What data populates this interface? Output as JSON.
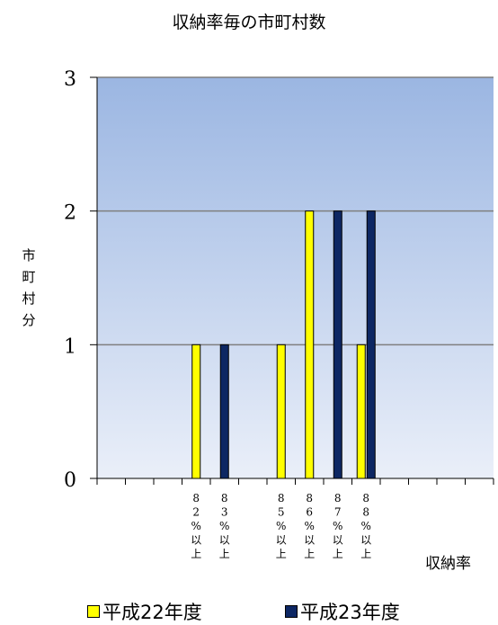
{
  "chart_data": {
    "type": "bar",
    "title": "収納率毎の市町村数",
    "ylabel": "市町村分",
    "xlabel": "収納率",
    "ylim": [
      0,
      3
    ],
    "yticks": [
      0,
      1,
      2,
      3
    ],
    "grid": true,
    "legend_position": "bottom",
    "categories": [
      "",
      "",
      "",
      "82%以上",
      "83%以上",
      "",
      "85%以上",
      "86%以上",
      "87%以上",
      "88%以上",
      "",
      "",
      "",
      ""
    ],
    "series": [
      {
        "name": "平成22年度",
        "color": "#ffff00",
        "values": [
          0,
          0,
          0,
          1,
          0,
          0,
          1,
          2,
          0,
          1,
          0,
          0,
          0,
          0
        ]
      },
      {
        "name": "平成23年度",
        "color": "#0d2763",
        "values": [
          0,
          0,
          0,
          0,
          1,
          0,
          0,
          0,
          2,
          2,
          0,
          0,
          0,
          0
        ]
      }
    ]
  }
}
